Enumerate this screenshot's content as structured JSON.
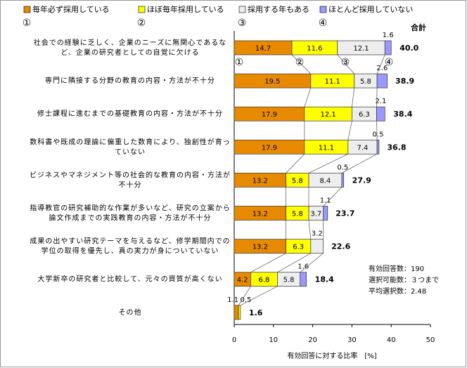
{
  "chart_data": {
    "type": "stacked-barh",
    "categories": [
      "社会での経験に乏しく、企業のニーズに無関心であるなど、企業の研究者としての自覚に欠ける",
      "専門に隣接する分野の教育の内容・方法が不十分",
      "修士課程に進むまでの基礎教育の内容・方法が不十分",
      "数科書や既成の理論に偏重した数育により、独創性が育っていない",
      "ビジネスやマネジメント等の社会的な教育の内容・方法が不十分",
      "指導教官の研究補助的な作業が多いなど、研究の立案から論文作成までの実践教育の内容・方法が不十分",
      "成果の出やすい研究テーマを与えるなど、修学期間内での学位の取得を優先し、真の実力が身についていない",
      "大学新卒の研究者と比較して、元々の資質が高くない",
      "その他"
    ],
    "series": [
      {
        "name": "毎年必ず採用している",
        "color": "#e88a00",
        "values": [
          14.7,
          19.5,
          17.9,
          17.9,
          13.2,
          13.2,
          13.2,
          4.2,
          1.1
        ]
      },
      {
        "name": "ほぼ毎年採用している",
        "color": "#ffff00",
        "values": [
          11.6,
          11.1,
          12.1,
          11.1,
          5.8,
          5.8,
          6.3,
          6.8,
          0.5
        ]
      },
      {
        "name": "採用する年もある",
        "color": "#eeeeee",
        "values": [
          12.1,
          5.8,
          6.3,
          7.4,
          8.4,
          3.7,
          3.2,
          5.8,
          null
        ]
      },
      {
        "name": "ほとんど採用していない",
        "color": "#9999ff",
        "values": [
          1.6,
          2.6,
          2.1,
          0.5,
          0.5,
          1.1,
          null,
          1.6,
          null
        ]
      }
    ],
    "totals": [
      40.0,
      38.9,
      38.4,
      36.8,
      27.9,
      23.7,
      22.6,
      18.4,
      1.6
    ],
    "total_labels": [
      "40.0",
      "38.9",
      "38.4",
      "36.8",
      "27.9",
      "23.7",
      "22.6",
      "18.4",
      "1.6"
    ],
    "totals_header": "合計",
    "markers": [
      "①",
      "②",
      "③",
      "④"
    ],
    "notes": [
      "有効回答数：190",
      "選択可能数：３つまで",
      "平均選択数：2.48"
    ],
    "xlabel": "有効回答に対する比率　[%]",
    "xlim": [
      0,
      50
    ],
    "xticks": [
      0,
      10,
      20,
      30,
      40,
      50
    ]
  }
}
